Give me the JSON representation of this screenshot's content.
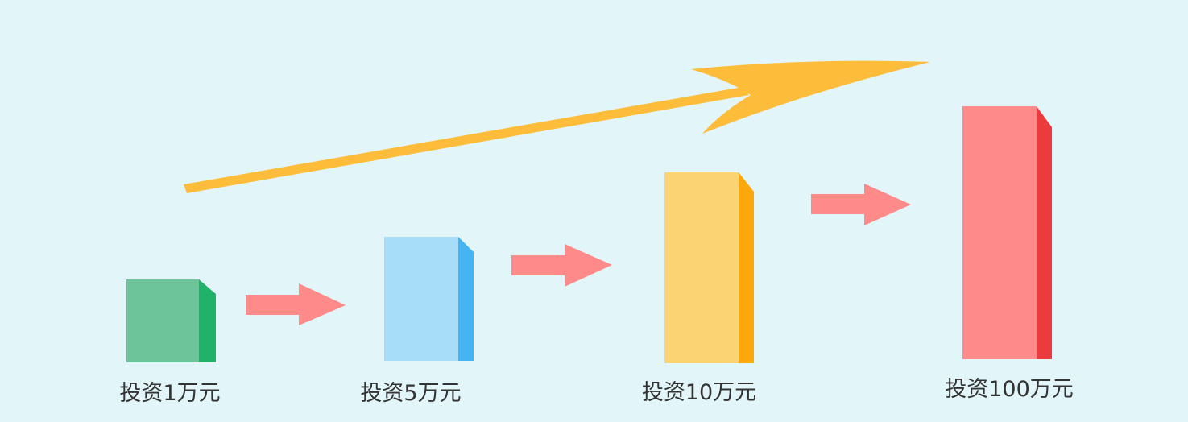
{
  "colors": {
    "background": "#e2f5f8",
    "trend_arrow": "#fdbd3a",
    "step_arrow": "#fe8a89",
    "label_text": "#333333"
  },
  "steps": [
    {
      "label": "投资1万元",
      "amount_wan": 1,
      "front_color": "#6ec49a",
      "side_color": "#21b26a"
    },
    {
      "label": "投资5万元",
      "amount_wan": 5,
      "front_color": "#a8ddf9",
      "side_color": "#44b5f2"
    },
    {
      "label": "投资10万元",
      "amount_wan": 10,
      "front_color": "#fbd373",
      "side_color": "#fda80a"
    },
    {
      "label": "投资100万元",
      "amount_wan": 100,
      "front_color": "#fe8a89",
      "side_color": "#ec3b3d"
    }
  ]
}
